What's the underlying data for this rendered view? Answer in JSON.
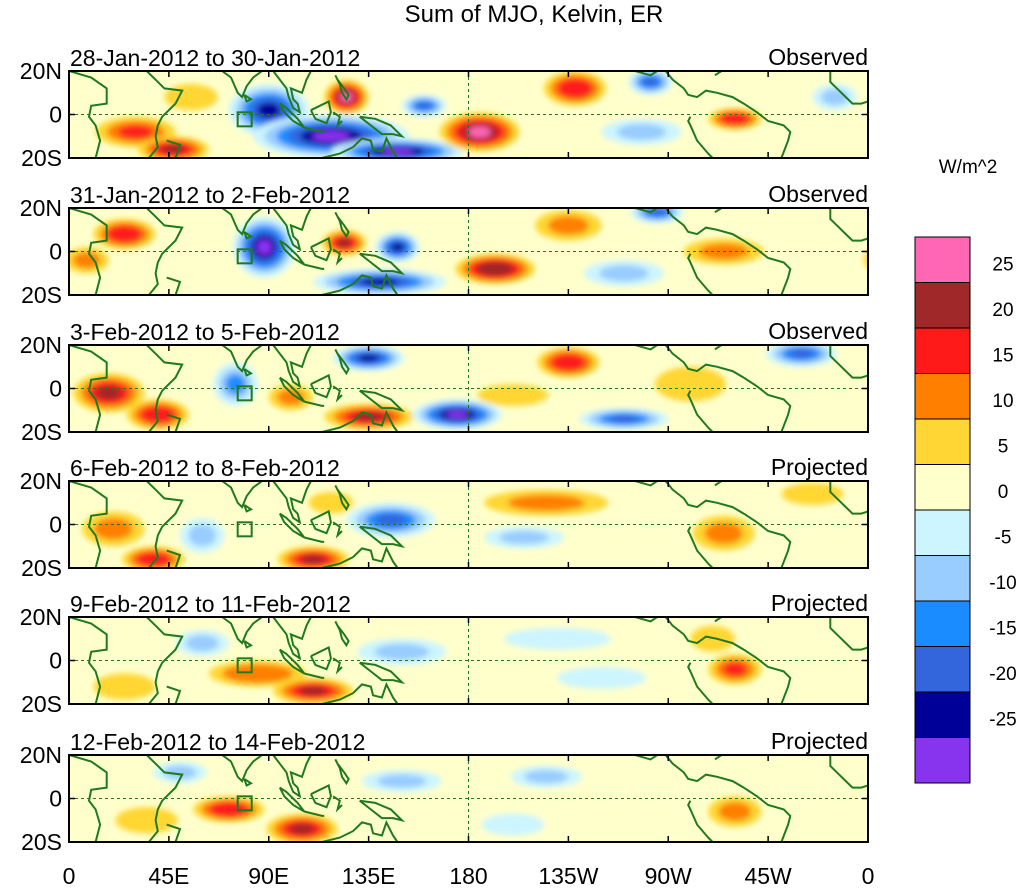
{
  "chart_data": {
    "type": "heatmap",
    "title": "Sum of MJO, Kelvin, ER",
    "colorbar": {
      "unit": "W/m^2",
      "tick_labels": [
        "25",
        "20",
        "15",
        "10",
        "5",
        "0",
        "-5",
        "-10",
        "-15",
        "-20",
        "-25"
      ],
      "colors": [
        "#ff66b3",
        "#a02828",
        "#ff1a1a",
        "#ff8000",
        "#ffd633",
        "#ffffcc",
        "#ccf5ff",
        "#99ccff",
        "#1a8cff",
        "#3366dd",
        "#000099",
        "#8833ee"
      ]
    },
    "x_tick_labels": [
      "0",
      "45E",
      "90E",
      "135E",
      "180",
      "135W",
      "90W",
      "45W",
      "0"
    ],
    "x_range_lon": [
      0,
      360
    ],
    "y_tick_labels": [
      "20N",
      "0",
      "20S"
    ],
    "y_range_lat": [
      -20,
      20
    ],
    "panels": [
      {
        "date_range": "28-Jan-2012 to 30-Jan-2012",
        "status": "Observed",
        "anomalies": [
          {
            "lon": 30,
            "lat": -8,
            "w": 18,
            "h": 7,
            "value": 15
          },
          {
            "lon": 47,
            "lat": -16,
            "w": 16,
            "h": 6,
            "value": 22
          },
          {
            "lon": 55,
            "lat": 8,
            "w": 12,
            "h": 6,
            "value": 8
          },
          {
            "lon": 90,
            "lat": 2,
            "w": 18,
            "h": 12,
            "value": -24
          },
          {
            "lon": 118,
            "lat": -10,
            "w": 35,
            "h": 10,
            "value": -28
          },
          {
            "lon": 148,
            "lat": -17,
            "w": 30,
            "h": 6,
            "value": -28
          },
          {
            "lon": 125,
            "lat": 8,
            "w": 10,
            "h": 8,
            "value": 26
          },
          {
            "lon": 160,
            "lat": 4,
            "w": 10,
            "h": 5,
            "value": -22
          },
          {
            "lon": 185,
            "lat": -8,
            "w": 18,
            "h": 9,
            "value": 27
          },
          {
            "lon": 228,
            "lat": 12,
            "w": 14,
            "h": 8,
            "value": 18
          },
          {
            "lon": 262,
            "lat": 15,
            "w": 10,
            "h": 6,
            "value": -22
          },
          {
            "lon": 300,
            "lat": -2,
            "w": 12,
            "h": 5,
            "value": 18
          },
          {
            "lon": 258,
            "lat": -8,
            "w": 18,
            "h": 6,
            "value": -9
          },
          {
            "lon": 345,
            "lat": 8,
            "w": 10,
            "h": 6,
            "value": -12
          }
        ]
      },
      {
        "date_range": "31-Jan-2012 to 2-Feb-2012",
        "status": "Observed",
        "anomalies": [
          {
            "lon": 25,
            "lat": 8,
            "w": 14,
            "h": 7,
            "value": 18
          },
          {
            "lon": 8,
            "lat": -4,
            "w": 10,
            "h": 6,
            "value": 12
          },
          {
            "lon": 88,
            "lat": 2,
            "w": 14,
            "h": 14,
            "value": -28
          },
          {
            "lon": 124,
            "lat": 4,
            "w": 10,
            "h": 6,
            "value": 22
          },
          {
            "lon": 148,
            "lat": 2,
            "w": 10,
            "h": 7,
            "value": -26
          },
          {
            "lon": 140,
            "lat": -14,
            "w": 30,
            "h": 6,
            "value": -25
          },
          {
            "lon": 192,
            "lat": -8,
            "w": 18,
            "h": 7,
            "value": 23
          },
          {
            "lon": 225,
            "lat": 12,
            "w": 15,
            "h": 7,
            "value": 12
          },
          {
            "lon": 265,
            "lat": 18,
            "w": 12,
            "h": 5,
            "value": -20
          },
          {
            "lon": 295,
            "lat": 0,
            "w": 18,
            "h": 6,
            "value": 10
          },
          {
            "lon": 250,
            "lat": -10,
            "w": 18,
            "h": 6,
            "value": -10
          }
        ]
      },
      {
        "date_range": "3-Feb-2012 to 5-Feb-2012",
        "status": "Observed",
        "anomalies": [
          {
            "lon": 18,
            "lat": -2,
            "w": 16,
            "h": 9,
            "value": 22
          },
          {
            "lon": 40,
            "lat": -12,
            "w": 14,
            "h": 7,
            "value": 18
          },
          {
            "lon": 75,
            "lat": 2,
            "w": 10,
            "h": 10,
            "value": -14
          },
          {
            "lon": 100,
            "lat": -4,
            "w": 10,
            "h": 6,
            "value": 12
          },
          {
            "lon": 135,
            "lat": 14,
            "w": 16,
            "h": 6,
            "value": -24
          },
          {
            "lon": 135,
            "lat": -13,
            "w": 20,
            "h": 6,
            "value": 22
          },
          {
            "lon": 175,
            "lat": -12,
            "w": 20,
            "h": 7,
            "value": -28
          },
          {
            "lon": 225,
            "lat": 12,
            "w": 14,
            "h": 7,
            "value": 18
          },
          {
            "lon": 200,
            "lat": -3,
            "w": 16,
            "h": 5,
            "value": 8
          },
          {
            "lon": 250,
            "lat": -14,
            "w": 20,
            "h": 5,
            "value": -18
          },
          {
            "lon": 330,
            "lat": 16,
            "w": 16,
            "h": 6,
            "value": -22
          },
          {
            "lon": 280,
            "lat": 2,
            "w": 16,
            "h": 8,
            "value": 6
          }
        ]
      },
      {
        "date_range": "6-Feb-2012 to 8-Feb-2012",
        "status": "Projected",
        "anomalies": [
          {
            "lon": 20,
            "lat": -2,
            "w": 14,
            "h": 8,
            "value": 10
          },
          {
            "lon": 38,
            "lat": -16,
            "w": 14,
            "h": 6,
            "value": 18
          },
          {
            "lon": 110,
            "lat": -16,
            "w": 16,
            "h": 6,
            "value": 20
          },
          {
            "lon": 145,
            "lat": 2,
            "w": 20,
            "h": 8,
            "value": -18
          },
          {
            "lon": 118,
            "lat": 10,
            "w": 10,
            "h": 5,
            "value": 8
          },
          {
            "lon": 215,
            "lat": 10,
            "w": 28,
            "h": 6,
            "value": 12
          },
          {
            "lon": 205,
            "lat": -6,
            "w": 18,
            "h": 5,
            "value": -10
          },
          {
            "lon": 295,
            "lat": -4,
            "w": 14,
            "h": 8,
            "value": 12
          },
          {
            "lon": 60,
            "lat": -5,
            "w": 10,
            "h": 8,
            "value": -8
          },
          {
            "lon": 335,
            "lat": 14,
            "w": 14,
            "h": 5,
            "value": 6
          }
        ]
      },
      {
        "date_range": "9-Feb-2012 to 11-Feb-2012",
        "status": "Projected",
        "anomalies": [
          {
            "lon": 85,
            "lat": -6,
            "w": 22,
            "h": 6,
            "value": 14
          },
          {
            "lon": 110,
            "lat": -14,
            "w": 18,
            "h": 6,
            "value": 21
          },
          {
            "lon": 25,
            "lat": -12,
            "w": 14,
            "h": 6,
            "value": 8
          },
          {
            "lon": 150,
            "lat": 4,
            "w": 20,
            "h": 6,
            "value": -10
          },
          {
            "lon": 60,
            "lat": 8,
            "w": 12,
            "h": 6,
            "value": -8
          },
          {
            "lon": 300,
            "lat": -4,
            "w": 12,
            "h": 7,
            "value": 16
          },
          {
            "lon": 290,
            "lat": 10,
            "w": 10,
            "h": 6,
            "value": 6
          },
          {
            "lon": 220,
            "lat": 10,
            "w": 24,
            "h": 5,
            "value": -7
          },
          {
            "lon": 240,
            "lat": -8,
            "w": 20,
            "h": 5,
            "value": -6
          }
        ]
      },
      {
        "date_range": "12-Feb-2012 to 14-Feb-2012",
        "status": "Projected",
        "anomalies": [
          {
            "lon": 72,
            "lat": -5,
            "w": 16,
            "h": 6,
            "value": 18
          },
          {
            "lon": 105,
            "lat": -14,
            "w": 16,
            "h": 7,
            "value": 22
          },
          {
            "lon": 35,
            "lat": -10,
            "w": 14,
            "h": 6,
            "value": 8
          },
          {
            "lon": 150,
            "lat": 8,
            "w": 18,
            "h": 5,
            "value": -9
          },
          {
            "lon": 50,
            "lat": 12,
            "w": 12,
            "h": 5,
            "value": -8
          },
          {
            "lon": 215,
            "lat": 10,
            "w": 16,
            "h": 5,
            "value": -12
          },
          {
            "lon": 300,
            "lat": -6,
            "w": 12,
            "h": 7,
            "value": 12
          },
          {
            "lon": 200,
            "lat": -12,
            "w": 14,
            "h": 5,
            "value": -6
          }
        ]
      }
    ]
  }
}
